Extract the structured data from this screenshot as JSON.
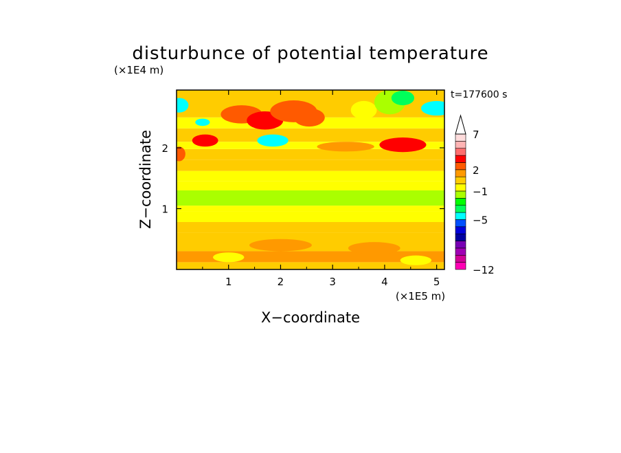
{
  "chart_data": {
    "type": "heatmap",
    "title": "disturbunce of potential temperature",
    "xlabel": "X−coordinate",
    "ylabel": "Z−coordinate",
    "x_unit": "(×1E5 m)",
    "y_unit": "(×1E4 m)",
    "time_label": "t=177600 s",
    "xlim": [
      0,
      5.15
    ],
    "ylim": [
      0,
      2.95
    ],
    "x_ticks": [
      1,
      2,
      3,
      4,
      5
    ],
    "y_ticks": [
      1,
      2
    ],
    "colorbar": {
      "levels": [
        -12,
        -11,
        -10,
        -9,
        -8,
        -7,
        -6,
        -5,
        -4,
        -3,
        -2,
        -1,
        0,
        1,
        2,
        3,
        4,
        5,
        6,
        7,
        8,
        9
      ],
      "colors": [
        "#ff00b4",
        "#d20096",
        "#a000b4",
        "#7800b4",
        "#0000a0",
        "#0000dc",
        "#0050ff",
        "#00ffff",
        "#00ff5a",
        "#00ff00",
        "#aaff00",
        "#ffff00",
        "#ffcc00",
        "#ff9900",
        "#ff5a00",
        "#ff0000",
        "#ff6e6e",
        "#ffb4b4",
        "#ffdcdc"
      ],
      "tick_labels": [
        "−12",
        "−5",
        "−1",
        "2",
        "7"
      ],
      "tick_values": [
        -12,
        -5,
        -1,
        2,
        7
      ],
      "extend": "max"
    },
    "bands": [
      {
        "z0": 0.0,
        "z1": 0.12,
        "value": 0.5
      },
      {
        "z0": 0.12,
        "z1": 0.3,
        "value": 1.0
      },
      {
        "z0": 0.3,
        "z1": 0.6,
        "value": 0.6
      },
      {
        "z0": 0.6,
        "z1": 0.78,
        "value": 0.3
      },
      {
        "z0": 0.78,
        "z1": 0.95,
        "value": -0.3
      },
      {
        "z0": 0.95,
        "z1": 1.05,
        "value": -0.7
      },
      {
        "z0": 1.05,
        "z1": 1.3,
        "value": -1.5
      },
      {
        "z0": 1.3,
        "z1": 1.45,
        "value": -0.6
      },
      {
        "z0": 1.45,
        "z1": 1.62,
        "value": -0.2
      },
      {
        "z0": 1.62,
        "z1": 1.8,
        "value": 0.4
      },
      {
        "z0": 1.8,
        "z1": 1.98,
        "value": 0.9
      },
      {
        "z0": 1.98,
        "z1": 2.1,
        "value": -0.3
      },
      {
        "z0": 2.1,
        "z1": 2.32,
        "value": 0.7
      },
      {
        "z0": 2.32,
        "z1": 2.5,
        "value": -0.4
      },
      {
        "z0": 2.5,
        "z1": 2.95,
        "value": 0.8
      }
    ],
    "features": [
      {
        "x": 0.05,
        "z": 2.7,
        "rx": 0.18,
        "rz": 0.12,
        "value": -4.5
      },
      {
        "x": 0.5,
        "z": 2.42,
        "rx": 0.14,
        "rz": 0.06,
        "value": -4.5
      },
      {
        "x": 0.55,
        "z": 2.12,
        "rx": 0.25,
        "rz": 0.1,
        "value": 3.5
      },
      {
        "x": 1.25,
        "z": 2.55,
        "rx": 0.4,
        "rz": 0.15,
        "value": 2.2
      },
      {
        "x": 1.85,
        "z": 2.12,
        "rx": 0.3,
        "rz": 0.1,
        "value": -5.0
      },
      {
        "x": 1.7,
        "z": 2.45,
        "rx": 0.35,
        "rz": 0.15,
        "value": 3.5
      },
      {
        "x": 2.25,
        "z": 2.6,
        "rx": 0.45,
        "rz": 0.18,
        "value": 2.8
      },
      {
        "x": 2.55,
        "z": 2.5,
        "rx": 0.3,
        "rz": 0.15,
        "value": 2.2
      },
      {
        "x": 3.6,
        "z": 2.62,
        "rx": 0.25,
        "rz": 0.15,
        "value": -0.8
      },
      {
        "x": 4.1,
        "z": 2.75,
        "rx": 0.3,
        "rz": 0.2,
        "value": -1.8
      },
      {
        "x": 4.35,
        "z": 2.82,
        "rx": 0.22,
        "rz": 0.12,
        "value": -4.0
      },
      {
        "x": 5.0,
        "z": 2.65,
        "rx": 0.3,
        "rz": 0.12,
        "value": -4.5
      },
      {
        "x": 4.35,
        "z": 2.05,
        "rx": 0.45,
        "rz": 0.12,
        "value": 3.0
      },
      {
        "x": 3.25,
        "z": 2.02,
        "rx": 0.55,
        "rz": 0.08,
        "value": 1.0
      },
      {
        "x": 0.05,
        "z": 1.9,
        "rx": 0.12,
        "rz": 0.12,
        "value": 2.5
      },
      {
        "x": 2.0,
        "z": 0.4,
        "rx": 0.6,
        "rz": 0.1,
        "value": 1.2
      },
      {
        "x": 3.8,
        "z": 0.35,
        "rx": 0.5,
        "rz": 0.1,
        "value": 1.2
      },
      {
        "x": 1.0,
        "z": 0.2,
        "rx": 0.3,
        "rz": 0.08,
        "value": -0.2
      },
      {
        "x": 4.6,
        "z": 0.15,
        "rx": 0.3,
        "rz": 0.08,
        "value": -0.2
      }
    ]
  }
}
